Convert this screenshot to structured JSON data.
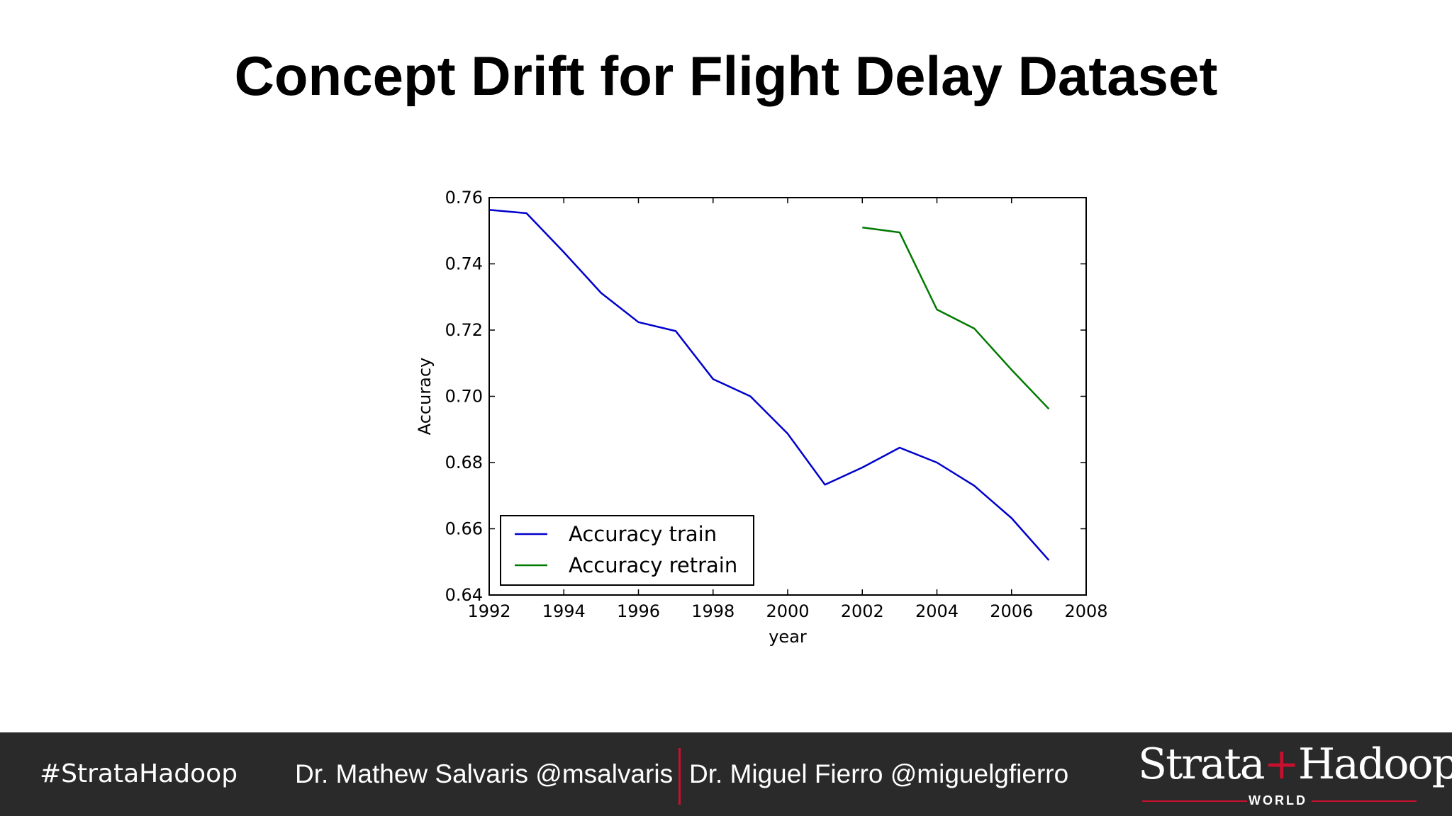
{
  "slide": {
    "title": "Concept Drift for Flight Delay Dataset"
  },
  "chart_data": {
    "type": "line",
    "xlabel": "year",
    "ylabel": "Accuracy",
    "xlim": [
      1992,
      2008
    ],
    "ylim": [
      0.64,
      0.76
    ],
    "xticks": [
      1992,
      1994,
      1996,
      1998,
      2000,
      2002,
      2004,
      2006,
      2008
    ],
    "yticks": [
      0.64,
      0.66,
      0.68,
      0.7,
      0.72,
      0.74,
      0.76
    ],
    "xtick_labels": [
      "1992",
      "1994",
      "1996",
      "1998",
      "2000",
      "2002",
      "2004",
      "2006",
      "2008"
    ],
    "ytick_labels": [
      "0.64",
      "0.66",
      "0.68",
      "0.70",
      "0.72",
      "0.74",
      "0.76"
    ],
    "legend_position": "lower-left",
    "grid": false,
    "series": [
      {
        "name": "Accuracy train",
        "color": "#0000cc",
        "x": [
          1992,
          1993,
          1994,
          1995,
          1996,
          1997,
          1998,
          1999,
          2000,
          2001,
          2002,
          2003,
          2004,
          2005,
          2006,
          2007
        ],
        "y": [
          0.7563,
          0.7553,
          0.7435,
          0.7312,
          0.7224,
          0.7197,
          0.7052,
          0.7,
          0.6887,
          0.6733,
          0.6785,
          0.6845,
          0.68,
          0.673,
          0.6632,
          0.6505
        ]
      },
      {
        "name": "Accuracy retrain",
        "color": "#007a00",
        "x": [
          2002,
          2003,
          2004,
          2005,
          2006,
          2007
        ],
        "y": [
          0.751,
          0.7495,
          0.7262,
          0.7205,
          0.708,
          0.6962
        ]
      }
    ]
  },
  "footer": {
    "hashtag": "#StrataHadoop",
    "speaker1": "Dr. Mathew Salvaris @msalvaris",
    "speaker2": "Dr. Miguel Fierro @miguelgfierro",
    "logo_left": "Strata",
    "logo_plus": "+",
    "logo_right": "Hadoop",
    "logo_sub": "WORLD",
    "accent_color": "#c8102e"
  }
}
